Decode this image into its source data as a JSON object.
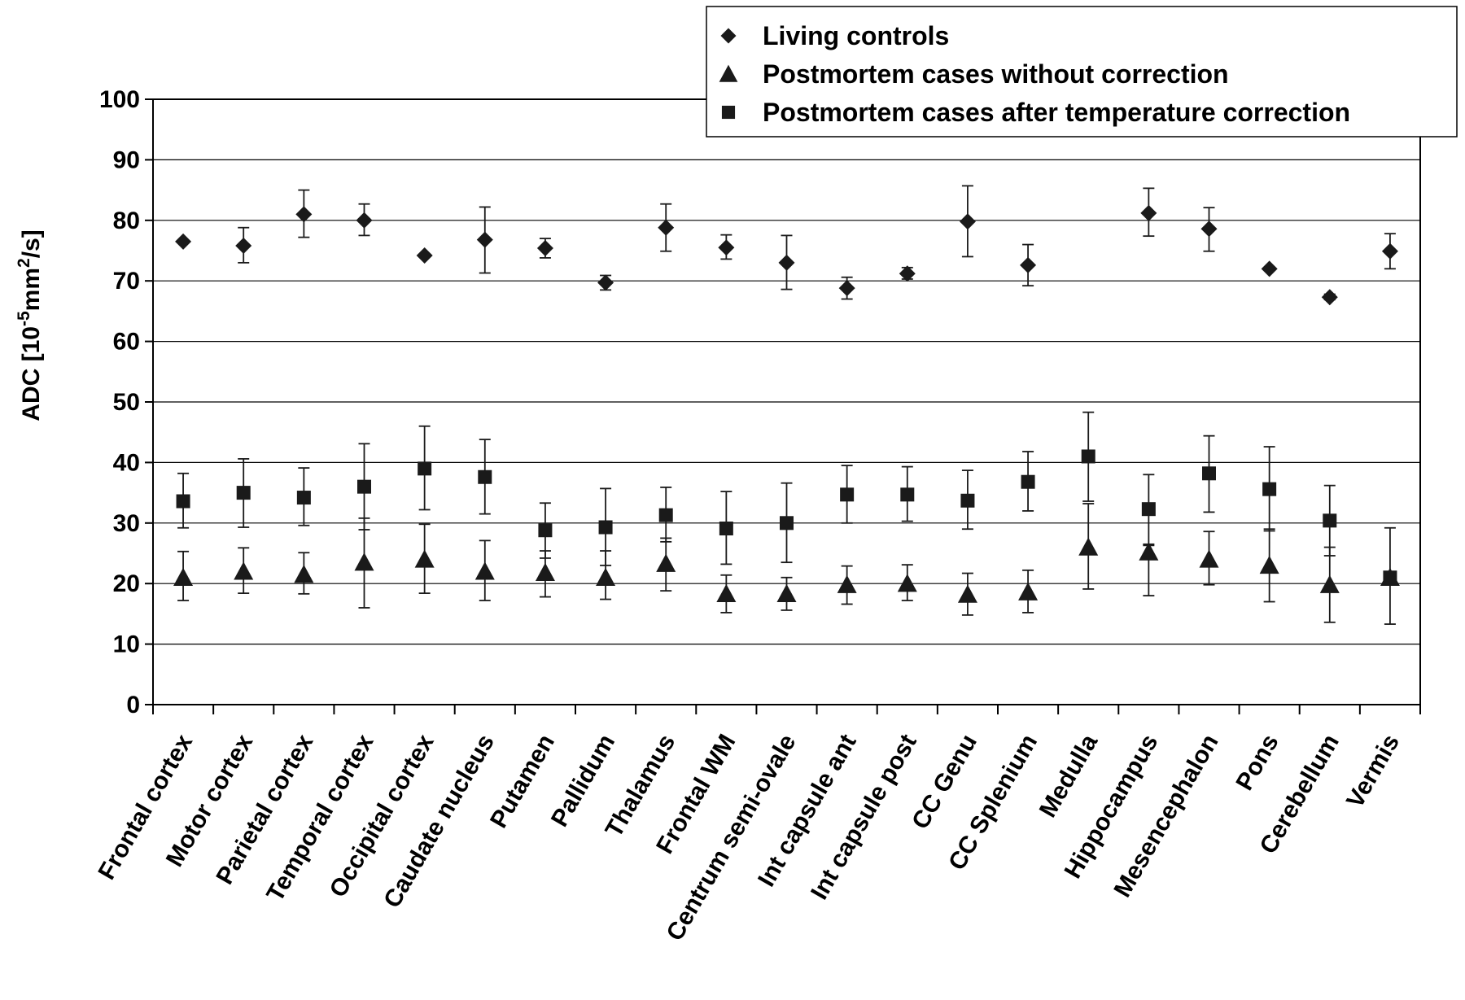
{
  "chart_data": {
    "type": "scatter",
    "title": "",
    "xlabel": "",
    "ylabel_parts": [
      "ADC [10",
      "-5",
      "mm",
      "2",
      "/s]"
    ],
    "ylim": [
      0,
      100
    ],
    "y_ticks": [
      "0",
      "10",
      "20",
      "30",
      "40",
      "50",
      "60",
      "70",
      "80",
      "90",
      "100"
    ],
    "grid": true,
    "legend_position": "top-right",
    "categories": [
      "Frontal cortex",
      "Motor cortex",
      "Parietal cortex",
      "Temporal cortex",
      "Occipital cortex",
      "Caudate nucleus",
      "Putamen",
      "Pallidum",
      "Thalamus",
      "Frontal WM",
      "Centrum semi-ovale",
      "Int capsule ant",
      "Int capsule post",
      "CC Genu",
      "CC Splenium",
      "Medulla",
      "Hippocampus",
      "Mesencephalon",
      "Pons",
      "Cerebellum",
      "Vermis"
    ],
    "series": [
      {
        "name": "Living controls",
        "marker": "diamond",
        "color": "#1a1a1a",
        "values": [
          76.5,
          75.8,
          81.0,
          80.0,
          74.2,
          76.8,
          75.4,
          69.7,
          78.8,
          75.5,
          73.0,
          68.8,
          71.2,
          79.8,
          72.6,
          null,
          81.2,
          78.6,
          72.0,
          67.3,
          74.9
        ],
        "err_low": [
          76.5,
          73.0,
          77.2,
          77.5,
          74.2,
          71.3,
          73.8,
          68.5,
          74.9,
          73.6,
          68.6,
          67.0,
          70.3,
          74.0,
          69.2,
          null,
          77.4,
          74.9,
          72.0,
          66.9,
          72.0
        ],
        "err_high": [
          76.5,
          78.8,
          85.0,
          82.7,
          74.2,
          82.2,
          77.0,
          70.9,
          82.7,
          77.6,
          77.5,
          70.6,
          72.2,
          85.7,
          76.0,
          null,
          85.3,
          82.1,
          72.0,
          67.8,
          77.8
        ]
      },
      {
        "name": "Postmortem cases without correction",
        "marker": "triangle",
        "color": "#1a1a1a",
        "values": [
          21.0,
          22.0,
          21.5,
          23.5,
          24.0,
          22.0,
          21.8,
          21.0,
          23.3,
          18.3,
          18.3,
          19.8,
          20.0,
          18.2,
          18.6,
          26.0,
          25.2,
          24.0,
          23.0,
          19.8,
          21.0
        ],
        "err_low": [
          17.2,
          18.4,
          18.3,
          16.0,
          18.4,
          17.2,
          17.8,
          17.4,
          18.8,
          15.2,
          15.6,
          16.6,
          17.2,
          14.8,
          15.2,
          19.1,
          18.0,
          19.8,
          17.0,
          13.6,
          13.3
        ],
        "err_high": [
          25.3,
          25.9,
          25.1,
          30.8,
          29.8,
          27.1,
          25.4,
          25.4,
          27.5,
          21.4,
          21.0,
          22.9,
          23.1,
          21.7,
          22.2,
          33.2,
          26.5,
          28.6,
          29.0,
          26.0,
          29.2
        ]
      },
      {
        "name": "Postmortem cases after temperature correction",
        "marker": "square",
        "color": "#1a1a1a",
        "values": [
          33.6,
          35.0,
          34.2,
          36.0,
          39.0,
          37.6,
          28.8,
          29.3,
          31.3,
          29.1,
          30.0,
          34.7,
          34.7,
          33.7,
          36.8,
          41.0,
          32.3,
          38.2,
          35.6,
          30.4,
          21.0
        ],
        "err_low": [
          29.2,
          29.3,
          29.6,
          28.9,
          32.2,
          31.5,
          24.2,
          23.0,
          26.9,
          23.2,
          23.5,
          30.0,
          30.3,
          29.0,
          32.0,
          33.6,
          26.3,
          31.8,
          28.7,
          24.6,
          21.0
        ],
        "err_high": [
          38.2,
          40.6,
          39.1,
          43.1,
          46.0,
          43.8,
          33.3,
          35.7,
          35.9,
          35.2,
          36.6,
          39.5,
          39.3,
          38.7,
          41.8,
          48.3,
          38.0,
          44.4,
          42.6,
          36.2,
          21.0
        ]
      }
    ]
  }
}
